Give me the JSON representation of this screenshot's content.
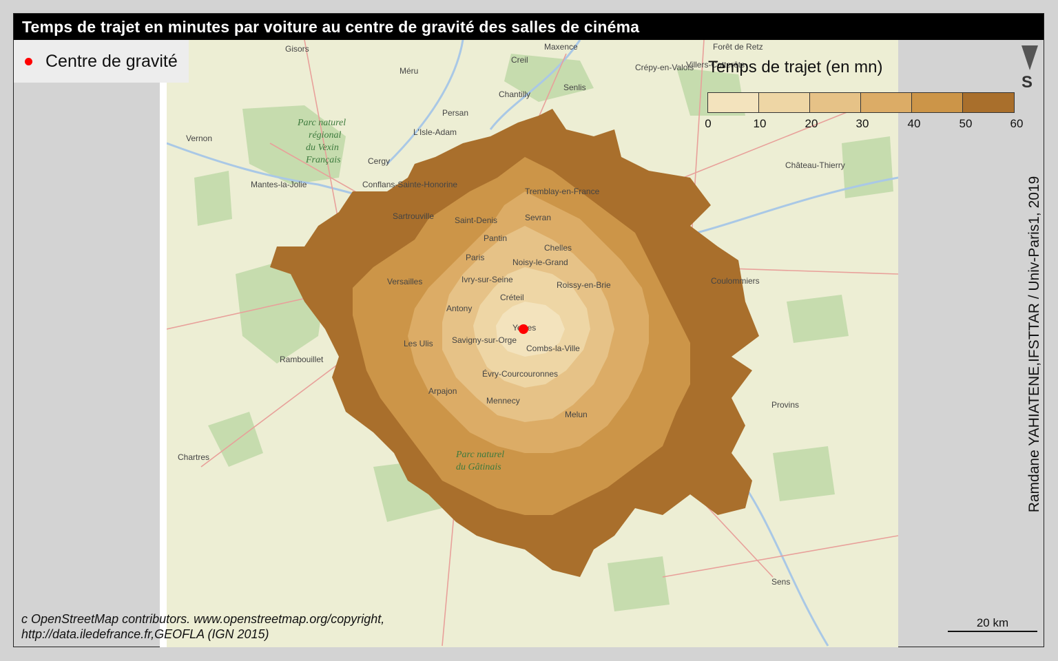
{
  "title": "Temps de trajet en minutes par voiture au centre de gravité des salles de cinéma",
  "point_legend": {
    "label": "Centre de gravité",
    "color": "#ff0000"
  },
  "travel_legend": {
    "title": "Temps de trajet (en mn)",
    "breaks": [
      "0",
      "10",
      "20",
      "30",
      "40",
      "50",
      "60"
    ],
    "colors": [
      "#f3e3bd",
      "#eed6a5",
      "#e6c287",
      "#dcac66",
      "#cc9548",
      "#a96f2c"
    ]
  },
  "north": {
    "letter": "S",
    "icon": "north-arrow-icon"
  },
  "author": "Ramdane YAHIATENE,IFSTTAR / Univ-Paris1, 2019",
  "credits": {
    "line1": "c OpenStreetMap contributors. www.openstreetmap.org/copyright,",
    "line2": "http://data.iledefrance.fr,GEOFLA (IGN 2015)"
  },
  "scale_bar": {
    "label": "20 km"
  },
  "map": {
    "places": [
      "Maxence",
      "Gisors",
      "Creil",
      "Crépy-en-Valois",
      "Villers-Cotterêts",
      "Forêt de Retz",
      "Méru",
      "Senlis",
      "Chantilly",
      "Persan",
      "L'Isle-Adam",
      "Vernon",
      "Cergy",
      "Conflans-Sainte-Honorine",
      "Mantes-la-Jolie",
      "Sartrouville",
      "Tremblay-en-France",
      "Sevran",
      "Saint-Denis",
      "Pantin",
      "Paris",
      "Chelles",
      "Noisy-le-Grand",
      "Versailles",
      "Ivry-sur-Seine",
      "Roissy-en-Brie",
      "Créteil",
      "Château-Thierry",
      "Coulommiers",
      "Antony",
      "Yerres",
      "Les Ulis",
      "Savigny-sur-Orge",
      "Combs-la-Ville",
      "Rambouillet",
      "Évry-Courcouronnes",
      "Arpajon",
      "Mennecy",
      "Melun",
      "Provins",
      "Chartres",
      "Sens"
    ],
    "park": [
      "Parc naturel",
      "régional",
      "du Vexin",
      "Français"
    ],
    "park2": [
      "Parc naturel",
      "du Gâtinais"
    ]
  }
}
